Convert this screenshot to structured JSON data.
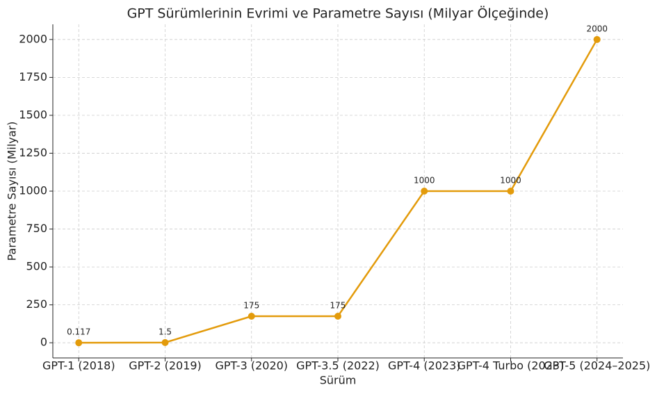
{
  "chart_data": {
    "type": "line",
    "title": "GPT Sürümlerinin Evrimi ve Parametre Sayısı (Milyar Ölçeğinde)",
    "xlabel": "Sürüm",
    "ylabel": "Parametre Sayısı (Milyar)",
    "categories": [
      "GPT-1 (2018)",
      "GPT-2 (2019)",
      "GPT-3 (2020)",
      "GPT-3.5 (2022)",
      "GPT-4 (2023)",
      "GPT-4 Turbo (2023)",
      "GPT-5 (2024–2025)"
    ],
    "values": [
      0.117,
      1.5,
      175,
      175,
      1000,
      1000,
      2000
    ],
    "color": "#e39b0b",
    "ylim": [
      -100,
      2100
    ],
    "yticks": [
      0,
      250,
      500,
      750,
      1000,
      1250,
      1500,
      1750,
      2000
    ],
    "grid": true
  }
}
